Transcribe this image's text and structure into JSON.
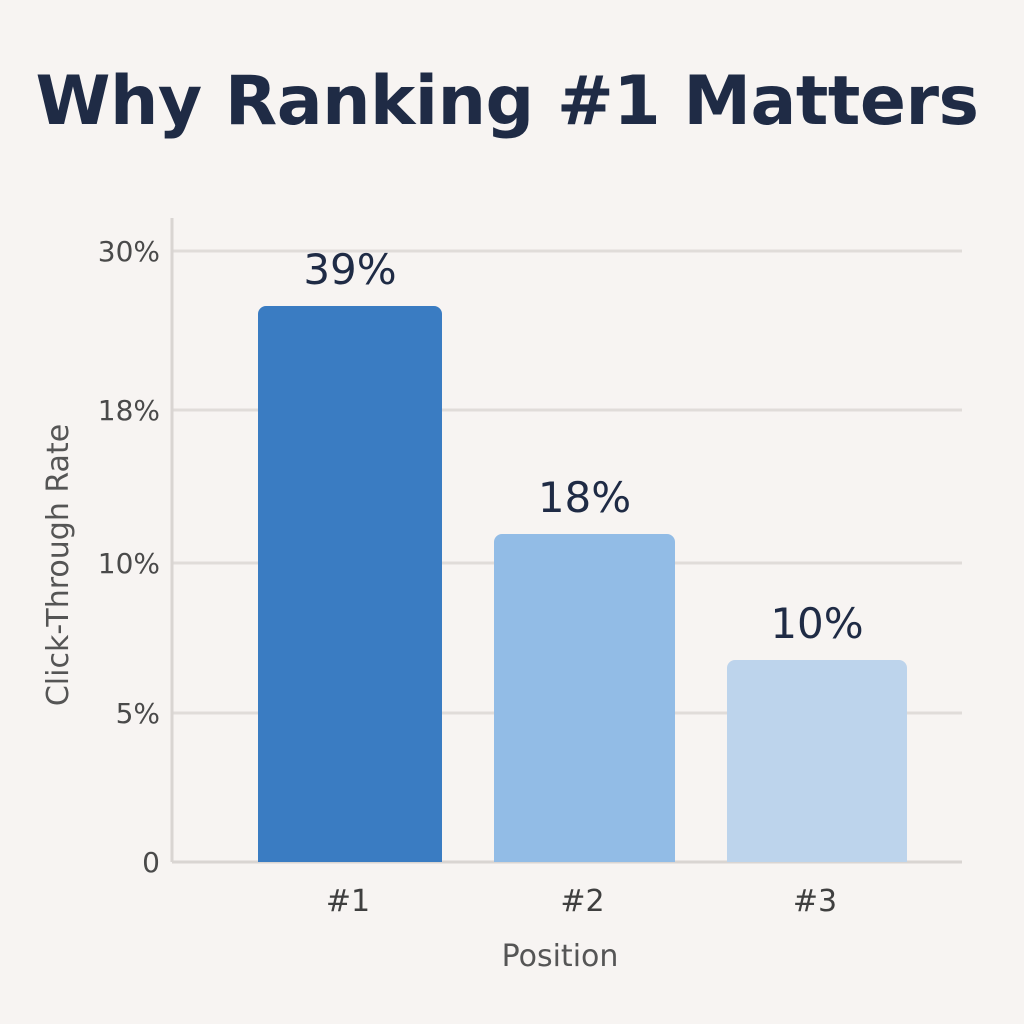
{
  "chart_data": {
    "type": "bar",
    "title": "Why Ranking #1 Matters",
    "xlabel": "Position",
    "ylabel": "Click-Through Rate",
    "categories": [
      "#1",
      "#2",
      "#3"
    ],
    "values": [
      39,
      18,
      10
    ],
    "data_labels": [
      "39%",
      "18%",
      "10%"
    ],
    "y_ticks": [
      {
        "label": "0",
        "value": 0
      },
      {
        "label": "5%",
        "value": 5
      },
      {
        "label": "10%",
        "value": 10
      },
      {
        "label": "18%",
        "value": 18
      },
      {
        "label": "30%",
        "value": 30
      }
    ],
    "colors": [
      "#3a7cc2",
      "#92bce6",
      "#bdd4ec"
    ],
    "grid": true,
    "legend": "none"
  }
}
